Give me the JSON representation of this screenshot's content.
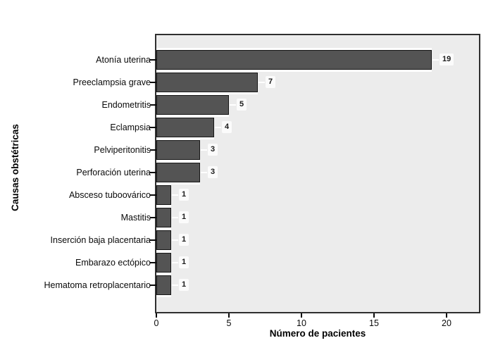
{
  "figure": {
    "background": "#ffffff"
  },
  "chart_data": {
    "type": "bar",
    "orientation": "horizontal",
    "title": "",
    "xlabel": "Número de pacientes",
    "ylabel": "Causas obstétricas",
    "categories": [
      "Atonía uterina",
      "Preeclampsia grave",
      "Endometritis",
      "Eclampsia",
      "Pelviperitonitis",
      "Perforación uterina",
      "Absceso tuboovárico",
      "Mastitis",
      "Inserción baja placentaria",
      "Embarazo ectópico",
      "Hematoma retroplacentario"
    ],
    "values": [
      19,
      7,
      5,
      4,
      3,
      3,
      1,
      1,
      1,
      1,
      1
    ],
    "value_labels_shown": true,
    "xticks": [
      0,
      5,
      10,
      15,
      20
    ],
    "xlim": [
      0,
      22.2
    ],
    "grid": false,
    "legend": "none",
    "colors": {
      "bar_fill": "#545454",
      "bar_border": "#161616",
      "plot_background": "#ececec",
      "plot_border": "#2f2f2f",
      "text": "#0a0a0a",
      "value_label_background": "#fbfbfb",
      "leader_line": "#ffffff"
    }
  }
}
